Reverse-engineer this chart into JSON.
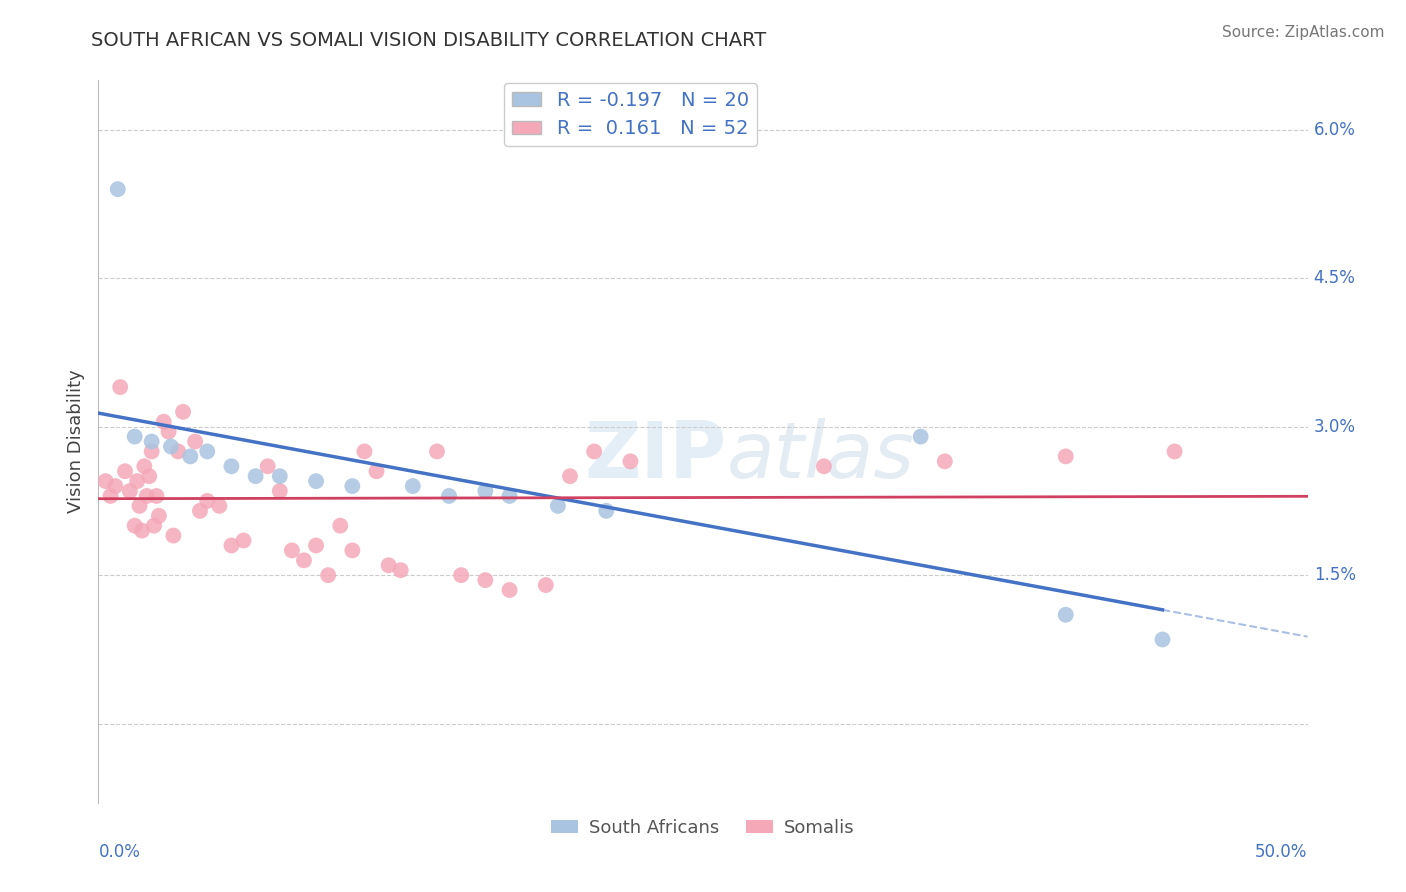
{
  "title": "SOUTH AFRICAN VS SOMALI VISION DISABILITY CORRELATION CHART",
  "source": "Source: ZipAtlas.com",
  "ylabel": "Vision Disability",
  "xlim": [
    0.0,
    50.0
  ],
  "ylim": [
    0.0,
    6.5
  ],
  "ytick_vals": [
    0.0,
    1.5,
    3.0,
    4.5,
    6.0
  ],
  "ytick_labels": [
    "",
    "1.5%",
    "3.0%",
    "4.5%",
    "6.0%"
  ],
  "r_sa": -0.197,
  "n_sa": 20,
  "r_so": 0.161,
  "n_so": 52,
  "sa_color": "#a8c4e0",
  "so_color": "#f4a8b8",
  "sa_line_color": "#4472c4",
  "so_line_color": "#d04060",
  "background_color": "#ffffff",
  "grid_color": "#cccccc",
  "south_africans_x": [
    0.8,
    1.5,
    2.2,
    3.0,
    3.8,
    4.5,
    5.5,
    6.5,
    7.5,
    9.0,
    10.5,
    13.0,
    14.5,
    16.0,
    17.0,
    19.0,
    21.0,
    34.0,
    40.0,
    44.0
  ],
  "south_africans_y": [
    5.4,
    2.9,
    2.85,
    2.8,
    2.7,
    2.75,
    2.6,
    2.5,
    2.5,
    2.45,
    2.4,
    2.4,
    2.3,
    2.35,
    2.3,
    2.2,
    2.15,
    2.9,
    1.1,
    0.85
  ],
  "somalis_x": [
    0.3,
    0.5,
    0.7,
    0.9,
    1.1,
    1.3,
    1.5,
    1.6,
    1.7,
    1.8,
    1.9,
    2.0,
    2.1,
    2.2,
    2.3,
    2.4,
    2.5,
    2.7,
    2.9,
    3.1,
    3.3,
    3.5,
    4.0,
    4.2,
    4.5,
    5.0,
    5.5,
    6.0,
    7.0,
    7.5,
    8.0,
    8.5,
    9.0,
    9.5,
    10.0,
    10.5,
    11.0,
    11.5,
    12.0,
    12.5,
    14.0,
    15.0,
    16.0,
    17.0,
    18.5,
    19.5,
    20.5,
    22.0,
    30.0,
    35.0,
    40.0,
    44.5
  ],
  "somalis_y": [
    2.45,
    2.3,
    2.4,
    3.4,
    2.55,
    2.35,
    2.0,
    2.45,
    2.2,
    1.95,
    2.6,
    2.3,
    2.5,
    2.75,
    2.0,
    2.3,
    2.1,
    3.05,
    2.95,
    1.9,
    2.75,
    3.15,
    2.85,
    2.15,
    2.25,
    2.2,
    1.8,
    1.85,
    2.6,
    2.35,
    1.75,
    1.65,
    1.8,
    1.5,
    2.0,
    1.75,
    2.75,
    2.55,
    1.6,
    1.55,
    2.75,
    1.5,
    1.45,
    1.35,
    1.4,
    2.5,
    2.75,
    2.65,
    2.6,
    2.65,
    2.7,
    2.75
  ]
}
